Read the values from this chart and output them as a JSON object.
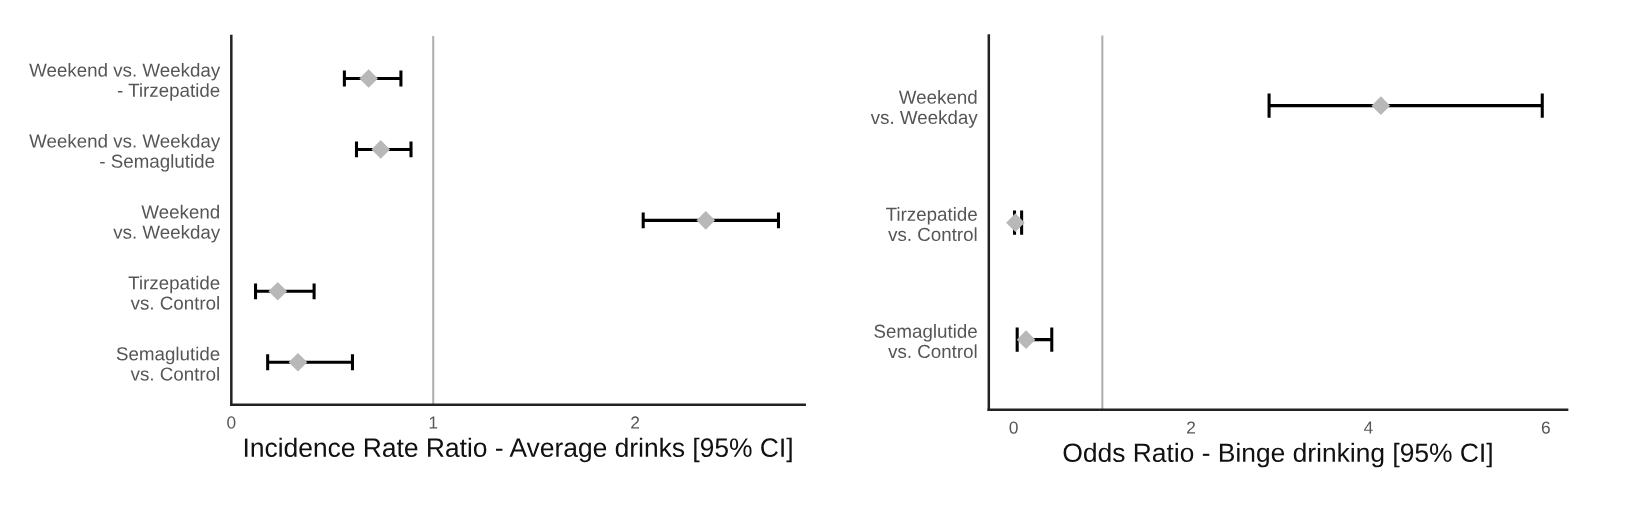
{
  "chart_data": [
    {
      "type": "scatter",
      "orientation": "horizontal",
      "xlabel": "Incidence Rate Ratio - Average drinks [95% CI]",
      "categories": [
        "Weekend vs. Weekday\n- Tirzepatide",
        "Weekend vs. Weekday\n- Semaglutide ",
        "Weekend\nvs. Weekday",
        "Tirzepatide\nvs. Control",
        "Semaglutide\nvs. Control"
      ],
      "values": [
        0.68,
        0.74,
        2.35,
        0.23,
        0.33
      ],
      "errors": [
        [
          0.56,
          0.84
        ],
        [
          0.62,
          0.89
        ],
        [
          2.04,
          2.71
        ],
        [
          0.12,
          0.41
        ],
        [
          0.18,
          0.6
        ]
      ],
      "color": "#b8b8b8",
      "marker": "diamond",
      "xlim": [
        0,
        2.84
      ],
      "xticks": [
        0,
        1,
        2
      ],
      "ref_lines": [
        {
          "axis": "x",
          "value": 1,
          "color": "#b0b0b0"
        }
      ],
      "grid": false,
      "legend": false
    },
    {
      "type": "scatter",
      "orientation": "horizontal",
      "xlabel": "Odds Ratio - Binge drinking [95% CI]",
      "categories": [
        "Weekend\nvs. Weekday",
        "Tirzepatide\nvs. Control",
        "Semaglutide\nvs. Control"
      ],
      "values": [
        4.14,
        0.02,
        0.14
      ],
      "errors": [
        [
          2.88,
          5.96
        ],
        [
          0.01,
          0.09
        ],
        [
          0.04,
          0.43
        ]
      ],
      "color": "#b8b8b8",
      "marker": "diamond",
      "xlim": [
        -0.28,
        6.24
      ],
      "xticks": [
        0,
        2,
        4,
        6
      ],
      "ref_lines": [
        {
          "axis": "x",
          "value": 1,
          "color": "#b0b0b0"
        }
      ],
      "grid": false,
      "legend": false
    }
  ]
}
